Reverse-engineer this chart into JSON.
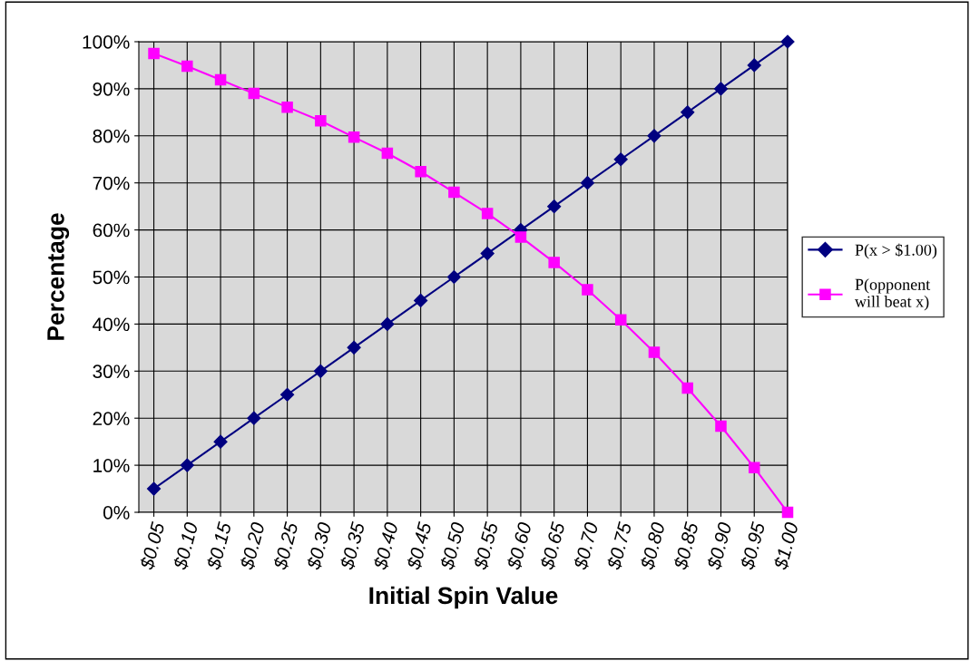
{
  "chart_data": {
    "type": "line",
    "xlabel": "Initial Spin Value",
    "ylabel": "Percentage",
    "categories": [
      "$0.05",
      "$0.10",
      "$0.15",
      "$0.20",
      "$0.25",
      "$0.30",
      "$0.35",
      "$0.40",
      "$0.45",
      "$0.50",
      "$0.55",
      "$0.60",
      "$0.65",
      "$0.70",
      "$0.75",
      "$0.80",
      "$0.85",
      "$0.90",
      "$0.95",
      "$1.00"
    ],
    "series": [
      {
        "name": "P(x > $1.00)",
        "color": "#000080",
        "marker": "diamond",
        "values": [
          5,
          10,
          15,
          20,
          25,
          30,
          35,
          40,
          45,
          50,
          55,
          60,
          65,
          70,
          75,
          80,
          85,
          90,
          95,
          100
        ]
      },
      {
        "name": "P(opponent\nwill beat x)",
        "color": "#ff00ff",
        "marker": "square",
        "values": [
          97.5,
          94.8,
          91.9,
          89.0,
          86.1,
          83.2,
          79.7,
          76.3,
          72.4,
          68.0,
          63.5,
          58.5,
          53.1,
          47.3,
          40.9,
          34.0,
          26.4,
          18.3,
          9.5,
          0
        ]
      }
    ],
    "ylim": [
      0,
      100
    ],
    "yticks": [
      {
        "value": 0,
        "label": "0%"
      },
      {
        "value": 10,
        "label": "10%"
      },
      {
        "value": 20,
        "label": "20%"
      },
      {
        "value": 30,
        "label": "30%"
      },
      {
        "value": 40,
        "label": "40%"
      },
      {
        "value": 50,
        "label": "50%"
      },
      {
        "value": 60,
        "label": "60%"
      },
      {
        "value": 70,
        "label": "70%"
      },
      {
        "value": 80,
        "label": "80%"
      },
      {
        "value": 90,
        "label": "90%"
      },
      {
        "value": 100,
        "label": "100%"
      }
    ],
    "grid": true,
    "legend": "right",
    "line_style": "solid"
  }
}
